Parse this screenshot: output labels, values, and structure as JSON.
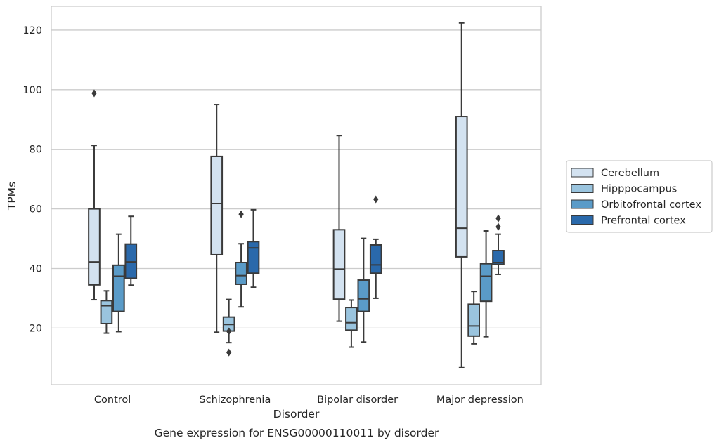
{
  "chart_data": {
    "type": "box",
    "title": "",
    "caption": "Gene expression for ENSG00000110011 by disorder",
    "xlabel": "Disorder",
    "ylabel": "TPMs",
    "ylim": [
      1,
      128
    ],
    "yticks": [
      20,
      40,
      60,
      80,
      100,
      120
    ],
    "grid": "horizontal",
    "legend_position": "right",
    "categories": [
      "Control",
      "Schizophrenia",
      "Bipolar disorder",
      "Major depression"
    ],
    "series": [
      {
        "name": "Cerebellum",
        "color": "#d3e2f0",
        "boxes": [
          {
            "whisker_low": 29.5,
            "q1": 34.5,
            "median": 42.2,
            "q3": 60.0,
            "whisker_high": 81.3,
            "outliers": [
              98.8
            ]
          },
          {
            "whisker_low": 18.6,
            "q1": 44.6,
            "median": 61.8,
            "q3": 77.6,
            "whisker_high": 95.0,
            "outliers": []
          },
          {
            "whisker_low": 22.3,
            "q1": 29.7,
            "median": 39.8,
            "q3": 53.0,
            "whisker_high": 84.6,
            "outliers": []
          },
          {
            "whisker_low": 6.7,
            "q1": 43.9,
            "median": 53.5,
            "q3": 91.0,
            "whisker_high": 122.4,
            "outliers": []
          }
        ]
      },
      {
        "name": "Hipppocampus",
        "color": "#9ac4de",
        "boxes": [
          {
            "whisker_low": 18.3,
            "q1": 21.5,
            "median": 27.5,
            "q3": 29.2,
            "whisker_high": 32.5,
            "outliers": []
          },
          {
            "whisker_low": 15.1,
            "q1": 19.0,
            "median": 21.2,
            "q3": 23.7,
            "whisker_high": 29.6,
            "outliers": [
              18.9,
              11.8
            ]
          },
          {
            "whisker_low": 13.6,
            "q1": 19.3,
            "median": 21.8,
            "q3": 26.9,
            "whisker_high": 29.4,
            "outliers": []
          },
          {
            "whisker_low": 14.7,
            "q1": 17.3,
            "median": 20.7,
            "q3": 28.0,
            "whisker_high": 32.3,
            "outliers": []
          }
        ]
      },
      {
        "name": "Orbitofrontal cortex",
        "color": "#5a9bc8",
        "boxes": [
          {
            "whisker_low": 18.8,
            "q1": 25.6,
            "median": 37.4,
            "q3": 41.1,
            "whisker_high": 51.5,
            "outliers": []
          },
          {
            "whisker_low": 27.1,
            "q1": 34.7,
            "median": 37.6,
            "q3": 42.0,
            "whisker_high": 48.3,
            "outliers": [
              58.2
            ]
          },
          {
            "whisker_low": 15.3,
            "q1": 25.6,
            "median": 29.8,
            "q3": 36.1,
            "whisker_high": 50.1,
            "outliers": []
          },
          {
            "whisker_low": 17.1,
            "q1": 29.0,
            "median": 37.4,
            "q3": 41.6,
            "whisker_high": 52.6,
            "outliers": []
          }
        ]
      },
      {
        "name": "Prefrontal cortex",
        "color": "#2a69ab",
        "boxes": [
          {
            "whisker_low": 34.4,
            "q1": 36.7,
            "median": 42.2,
            "q3": 48.2,
            "whisker_high": 57.5,
            "outliers": []
          },
          {
            "whisker_low": 33.7,
            "q1": 38.4,
            "median": 46.9,
            "q3": 49.0,
            "whisker_high": 59.7,
            "outliers": []
          },
          {
            "whisker_low": 30.0,
            "q1": 38.4,
            "median": 41.2,
            "q3": 47.9,
            "whisker_high": 49.8,
            "outliers": [
              63.2
            ]
          },
          {
            "whisker_low": 38.0,
            "q1": 41.4,
            "median": 42.0,
            "q3": 46.0,
            "whisker_high": 51.5,
            "outliers": [
              56.8,
              54.0
            ]
          }
        ]
      }
    ]
  }
}
